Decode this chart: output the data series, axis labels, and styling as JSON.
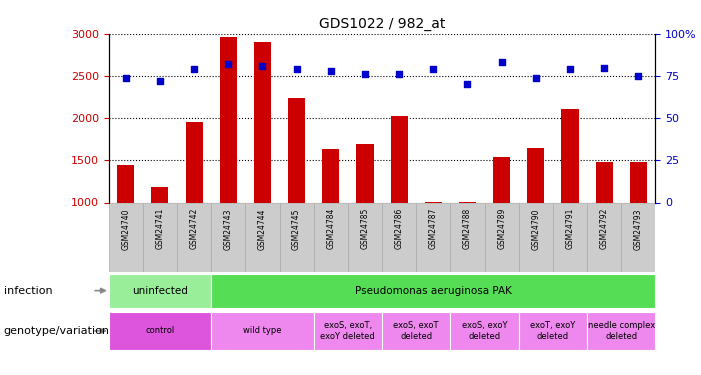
{
  "title": "GDS1022 / 982_at",
  "samples": [
    "GSM24740",
    "GSM24741",
    "GSM24742",
    "GSM24743",
    "GSM24744",
    "GSM24745",
    "GSM24784",
    "GSM24785",
    "GSM24786",
    "GSM24787",
    "GSM24788",
    "GSM24789",
    "GSM24790",
    "GSM24791",
    "GSM24792",
    "GSM24793"
  ],
  "counts": [
    1440,
    1185,
    1950,
    2960,
    2900,
    2240,
    1640,
    1690,
    2020,
    1010,
    1010,
    1540,
    1650,
    2110,
    1480,
    1480
  ],
  "percentiles": [
    74,
    72,
    79,
    82,
    81,
    79,
    78,
    76,
    76,
    79,
    70,
    83,
    74,
    79,
    80,
    75
  ],
  "bar_color": "#cc0000",
  "dot_color": "#0000cc",
  "ylim_left": [
    1000,
    3000
  ],
  "ylim_right": [
    0,
    100
  ],
  "yticks_left": [
    1000,
    1500,
    2000,
    2500,
    3000
  ],
  "yticks_right": [
    0,
    25,
    50,
    75,
    100
  ],
  "infection_row": {
    "groups": [
      {
        "text": "uninfected",
        "color": "#99ee99",
        "span": [
          0,
          3
        ]
      },
      {
        "text": "Pseudomonas aeruginosa PAK",
        "color": "#55dd55",
        "span": [
          3,
          16
        ]
      }
    ]
  },
  "genotype_row": {
    "groups": [
      {
        "text": "control",
        "color": "#dd55dd",
        "span": [
          0,
          3
        ]
      },
      {
        "text": "wild type",
        "color": "#ee88ee",
        "span": [
          3,
          6
        ]
      },
      {
        "text": "exoS, exoT,\nexoY deleted",
        "color": "#ee88ee",
        "span": [
          6,
          8
        ]
      },
      {
        "text": "exoS, exoT\ndeleted",
        "color": "#ee88ee",
        "span": [
          8,
          10
        ]
      },
      {
        "text": "exoS, exoY\ndeleted",
        "color": "#ee88ee",
        "span": [
          10,
          12
        ]
      },
      {
        "text": "exoT, exoY\ndeleted",
        "color": "#ee88ee",
        "span": [
          12,
          14
        ]
      },
      {
        "text": "needle complex\ndeleted",
        "color": "#ee88ee",
        "span": [
          14,
          16
        ]
      }
    ]
  },
  "sample_label_bg": "#cccccc",
  "sample_label_edge": "#aaaaaa",
  "legend_count_color": "#cc0000",
  "legend_percentile_color": "#0000cc"
}
